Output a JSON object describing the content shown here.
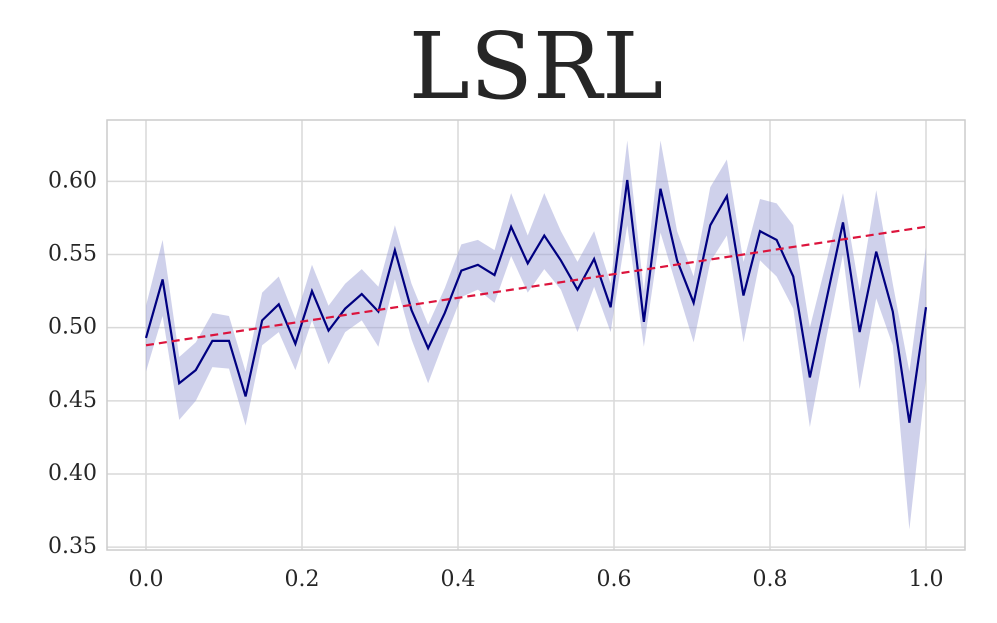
{
  "chart_data": {
    "type": "line",
    "title": "LSRL",
    "x": [
      0,
      0.0213,
      0.0426,
      0.0638,
      0.0851,
      0.1064,
      0.1277,
      0.1489,
      0.1702,
      0.1915,
      0.2128,
      0.234,
      0.2553,
      0.2766,
      0.2979,
      0.3191,
      0.3404,
      0.3617,
      0.383,
      0.4043,
      0.4255,
      0.4468,
      0.4681,
      0.4894,
      0.5106,
      0.5319,
      0.5532,
      0.5745,
      0.5957,
      0.617,
      0.6383,
      0.6596,
      0.6809,
      0.7021,
      0.7234,
      0.7447,
      0.766,
      0.7872,
      0.8085,
      0.8298,
      0.8511,
      0.8723,
      0.8936,
      0.9149,
      0.9362,
      0.9574,
      0.9787,
      1
    ],
    "values": [
      0.493,
      0.533,
      0.462,
      0.471,
      0.491,
      0.491,
      0.453,
      0.505,
      0.516,
      0.489,
      0.525,
      0.498,
      0.513,
      0.523,
      0.511,
      0.553,
      0.512,
      0.486,
      0.51,
      0.539,
      0.543,
      0.536,
      0.569,
      0.544,
      0.563,
      0.546,
      0.526,
      0.547,
      0.514,
      0.601,
      0.504,
      0.595,
      0.546,
      0.517,
      0.57,
      0.59,
      0.522,
      0.566,
      0.56,
      0.535,
      0.466,
      0.519,
      0.572,
      0.497,
      0.552,
      0.511,
      0.435,
      0.514
    ],
    "band_upper": [
      0.515,
      0.56,
      0.48,
      0.49,
      0.51,
      0.508,
      0.47,
      0.524,
      0.535,
      0.506,
      0.543,
      0.515,
      0.53,
      0.54,
      0.528,
      0.57,
      0.53,
      0.502,
      0.527,
      0.557,
      0.56,
      0.553,
      0.592,
      0.563,
      0.592,
      0.566,
      0.545,
      0.566,
      0.53,
      0.628,
      0.525,
      0.628,
      0.566,
      0.535,
      0.596,
      0.615,
      0.545,
      0.588,
      0.585,
      0.57,
      0.5,
      0.545,
      0.592,
      0.525,
      0.594,
      0.53,
      0.47,
      0.555
    ],
    "band_lower": [
      0.47,
      0.508,
      0.437,
      0.45,
      0.473,
      0.472,
      0.433,
      0.488,
      0.497,
      0.471,
      0.505,
      0.475,
      0.497,
      0.505,
      0.487,
      0.533,
      0.492,
      0.462,
      0.492,
      0.521,
      0.526,
      0.517,
      0.549,
      0.524,
      0.54,
      0.526,
      0.497,
      0.528,
      0.497,
      0.57,
      0.487,
      0.565,
      0.527,
      0.49,
      0.545,
      0.563,
      0.49,
      0.546,
      0.535,
      0.513,
      0.432,
      0.493,
      0.55,
      0.458,
      0.52,
      0.488,
      0.362,
      0.465
    ],
    "color": "#000080",
    "band_color": "#9fa4d8",
    "trend": {
      "x": [
        0,
        1
      ],
      "values": [
        0.488,
        0.569
      ],
      "color": "#dc143c",
      "dashed": true
    },
    "xlim": [
      -0.05,
      1.05
    ],
    "ylim": [
      0.348,
      0.642
    ],
    "xticks": [
      {
        "value": 0,
        "label": "0.0"
      },
      0.2,
      0.4,
      0.6,
      0.8,
      {
        "value": 1,
        "label": "1.0"
      }
    ],
    "yticks": [
      0.35,
      {
        "value": 0.4,
        "label": "0.40"
      },
      0.45,
      {
        "value": 0.5,
        "label": "0.50"
      },
      0.55,
      {
        "value": 0.6,
        "label": "0.60"
      }
    ],
    "grid": true
  }
}
